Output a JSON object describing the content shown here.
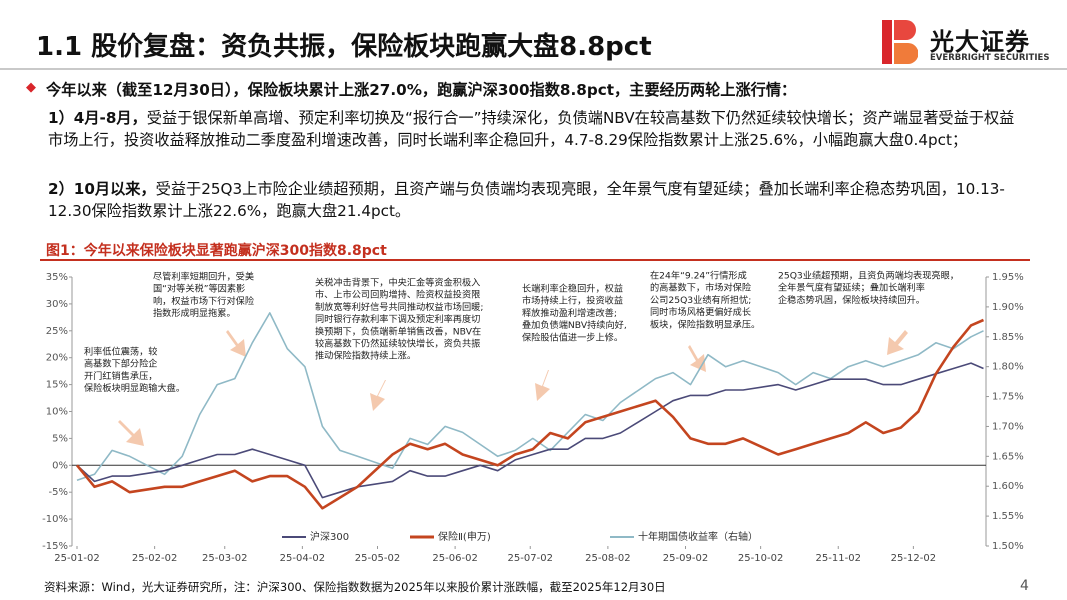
{
  "header": {
    "title": "1.1 股价复盘：资负共振，保险板块跑赢大盘8.8pct",
    "logo_cn": "光大证券",
    "logo_en": "EVERBRIGHT SECURITIES"
  },
  "bullet": "今年以来（截至12月30日），保险板块累计上涨27.0%，跑赢沪深300指数8.8pct，主要经历两轮上涨行情：",
  "paragraphs": [
    {
      "lead": "1）4月-8月，",
      "text": "受益于银保新单高增、预定利率切换及“报行合一”持续深化，负债端NBV在较高基数下仍然延续较快增长；资产端显著受益于权益市场上行，投资收益释放推动二季度盈利增速改善，同时长端利率企稳回升，4.7-8.29保险指数累计上涨25.6%，小幅跑赢大盘0.4pct；"
    },
    {
      "lead": "2）10月以来，",
      "text": "受益于25Q3上市险企业绩超预期，且资产端与负债端均表现亮眼，全年景气度有望延续；叠加长端利率企稳态势巩固，10.13-12.30保险指数累计上涨22.6%，跑赢大盘21.4pct。"
    }
  ],
  "figure_caption": "图1：今年以来保险板块显著跑赢沪深300指数8.8pct",
  "chart_data": {
    "type": "line",
    "x": [
      "25-01-02",
      "25-01-09",
      "25-01-16",
      "25-01-23",
      "25-02-06",
      "25-02-13",
      "25-02-20",
      "25-02-27",
      "25-03-06",
      "25-03-13",
      "25-03-20",
      "25-03-27",
      "25-04-03",
      "25-04-10",
      "25-04-17",
      "25-04-24",
      "25-05-08",
      "25-05-15",
      "25-05-22",
      "25-05-29",
      "25-06-05",
      "25-06-12",
      "25-06-19",
      "25-06-26",
      "25-07-03",
      "25-07-10",
      "25-07-17",
      "25-07-24",
      "25-07-31",
      "25-08-07",
      "25-08-14",
      "25-08-21",
      "25-08-28",
      "25-09-04",
      "25-09-11",
      "25-09-18",
      "25-09-25",
      "25-10-09",
      "25-10-16",
      "25-10-23",
      "25-10-30",
      "25-11-06",
      "25-11-13",
      "25-11-20",
      "25-11-27",
      "25-12-04",
      "25-12-11",
      "25-12-18",
      "25-12-25",
      "25-12-30"
    ],
    "series": [
      {
        "name": "沪深300",
        "color": "#4b4a78",
        "values": [
          0,
          -3,
          -2,
          -2,
          -1,
          0,
          1,
          2,
          2,
          3,
          2,
          1,
          0,
          -6,
          -5,
          -4,
          -3,
          -1,
          -2,
          -2,
          -1,
          0,
          -1,
          1,
          2,
          3,
          3,
          5,
          5,
          6,
          8,
          10,
          12,
          13,
          13,
          14,
          14,
          15,
          14,
          15,
          16,
          16,
          16,
          15,
          15,
          16,
          17,
          18,
          19,
          18
        ]
      },
      {
        "name": "保险Ⅱ(申万)",
        "color": "#c4451f",
        "values": [
          0,
          -4,
          -3,
          -5,
          -4,
          -4,
          -3,
          -2,
          -1,
          -3,
          -2,
          -2,
          -4,
          -8,
          -6,
          -4,
          2,
          4,
          3,
          4,
          2,
          1,
          0,
          2,
          3,
          6,
          5,
          8,
          9,
          10,
          11,
          12,
          9,
          5,
          4,
          4,
          5,
          2,
          3,
          4,
          5,
          6,
          8,
          6,
          7,
          10,
          17,
          22,
          26,
          27
        ]
      },
      {
        "name": "十年期国债收益率（右轴）",
        "color": "#8fb9c6",
        "axis": "y2",
        "values": [
          1.61,
          1.62,
          1.66,
          1.65,
          1.62,
          1.65,
          1.72,
          1.77,
          1.78,
          1.84,
          1.89,
          1.83,
          1.8,
          1.7,
          1.66,
          1.65,
          1.63,
          1.68,
          1.67,
          1.7,
          1.69,
          1.67,
          1.65,
          1.66,
          1.68,
          1.66,
          1.69,
          1.72,
          1.71,
          1.74,
          1.76,
          1.78,
          1.79,
          1.77,
          1.82,
          1.8,
          1.81,
          1.79,
          1.77,
          1.79,
          1.78,
          1.8,
          1.81,
          1.8,
          1.81,
          1.82,
          1.84,
          1.83,
          1.85,
          1.86
        ]
      }
    ],
    "xlim": [
      "25-01-02",
      "25-12-31"
    ],
    "xticks": [
      "25-01-02",
      "25-02-02",
      "25-03-02",
      "25-04-02",
      "25-05-02",
      "25-06-02",
      "25-07-02",
      "25-08-02",
      "25-09-02",
      "25-10-02",
      "25-11-02",
      "25-12-02"
    ],
    "ylim": [
      -15,
      35
    ],
    "yticks": [
      {
        "value": -15,
        "label": "-15%"
      },
      {
        "value": -10,
        "label": "-10%"
      },
      {
        "value": -5,
        "label": "-5%"
      },
      {
        "value": 0,
        "label": "0%"
      },
      {
        "value": 5,
        "label": "5%"
      },
      {
        "value": 10,
        "label": "10%"
      },
      {
        "value": 15,
        "label": "15%"
      },
      {
        "value": 20,
        "label": "20%"
      },
      {
        "value": 25,
        "label": "25%"
      },
      {
        "value": 30,
        "label": "30%"
      },
      {
        "value": 35,
        "label": "35%"
      }
    ],
    "y2lim": [
      1.5,
      1.95
    ],
    "y2ticks": [
      {
        "value": 1.5,
        "label": "1.50%"
      },
      {
        "value": 1.55,
        "label": "1.55%"
      },
      {
        "value": 1.6,
        "label": "1.60%"
      },
      {
        "value": 1.65,
        "label": "1.65%"
      },
      {
        "value": 1.7,
        "label": "1.70%"
      },
      {
        "value": 1.75,
        "label": "1.75%"
      },
      {
        "value": 1.8,
        "label": "1.80%"
      },
      {
        "value": 1.85,
        "label": "1.85%"
      },
      {
        "value": 1.9,
        "label": "1.90%"
      },
      {
        "value": 1.95,
        "label": "1.95%"
      }
    ],
    "legend": "bottom",
    "annotations": [
      [
        "利率低位震荡，较",
        "高基数下部分险企",
        "开门红销售承压，",
        "保险板块明显跑输大盘。"
      ],
      [
        "尽管利率短期回升，受美",
        "国“对等关税”等因素影",
        "响，权益市场下行对保险",
        "指数形成明显拖累。"
      ],
      [
        "关税冲击背景下，中央汇金等资金积极入",
        "市、上市公司回购增持、险资权益投资限",
        "制放宽等利好信号共同推动权益市场回暖;",
        "同时银行存款利率下调及预定利率再度切",
        "换预期下，负债端新单销售改善，NBV在",
        "较高基数下仍然延续较快增长，资负共振",
        "推动保险指数持续上涨。"
      ],
      [
        "长端利率企稳回升，权益",
        "市场持续上行，投资收益",
        "释放推动盈利增速改善;",
        "叠加负债端NBV持续向好,",
        "保险股估值进一步上修。"
      ],
      [
        "在24年“9.24”行情形成",
        "的高基数下，市场对保险",
        "公司25Q3业绩有所担忧;",
        "同时市场风格更偏好成长",
        "板块，保险指数明显承压。"
      ],
      [
        "25Q3业绩超预期，且资负两端均表现亮眼，",
        "全年景气度有望延续；叠加长端利率",
        "企稳态势巩固，保险板块持续回升。"
      ]
    ]
  },
  "footer": {
    "source": "资料来源：Wind，光大证券研究所，注：沪深300、保险指数数据为2025年以来股价累计涨跌幅，截至2025年12月30日",
    "page": "4"
  }
}
